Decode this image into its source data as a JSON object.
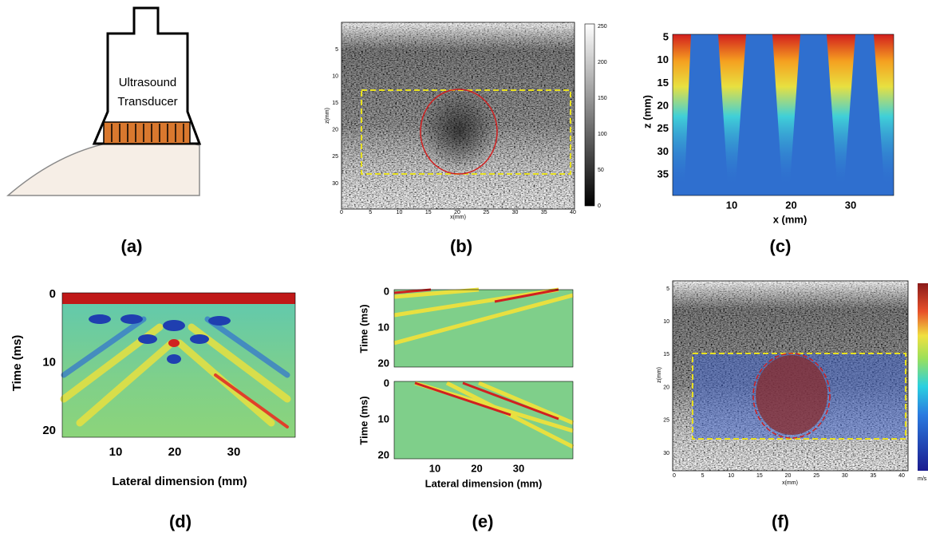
{
  "panels": {
    "a": {
      "caption": "(a)",
      "label_lines": [
        "Ultrasound",
        "Transducer"
      ]
    },
    "b": {
      "caption": "(b)",
      "x_label": "x(mm)",
      "y_label": "z(mm)",
      "x_ticks": [
        0,
        5,
        10,
        15,
        20,
        25,
        30,
        35,
        40
      ],
      "y_ticks": [
        5,
        10,
        15,
        20,
        25,
        30
      ],
      "colorbar_ticks": [
        0,
        50,
        100,
        150,
        200,
        250
      ]
    },
    "c": {
      "caption": "(c)",
      "x_label": "x (mm)",
      "y_label": "z (mm)",
      "x_ticks": [
        10,
        20,
        30
      ],
      "y_ticks": [
        5,
        10,
        15,
        20,
        25,
        30,
        35
      ]
    },
    "d": {
      "caption": "(d)",
      "x_label": "Lateral dimension (mm)",
      "y_label": "Time (ms)",
      "x_ticks": [
        10,
        20,
        30
      ],
      "y_ticks": [
        0,
        10,
        20
      ]
    },
    "e": {
      "caption": "(e)",
      "x_label": "Lateral dimension (mm)",
      "y_label": "Time (ms)",
      "x_ticks": [
        10,
        20,
        30
      ],
      "y_ticks": [
        0,
        10,
        20
      ]
    },
    "f": {
      "caption": "(f)",
      "x_label": "x(mm)",
      "y_label": "z(mm)",
      "x_ticks": [
        0,
        5,
        10,
        15,
        20,
        25,
        30,
        35,
        40
      ],
      "y_ticks": [
        5,
        10,
        15,
        20,
        25,
        30
      ],
      "colorbar_unit": "m/s"
    }
  }
}
